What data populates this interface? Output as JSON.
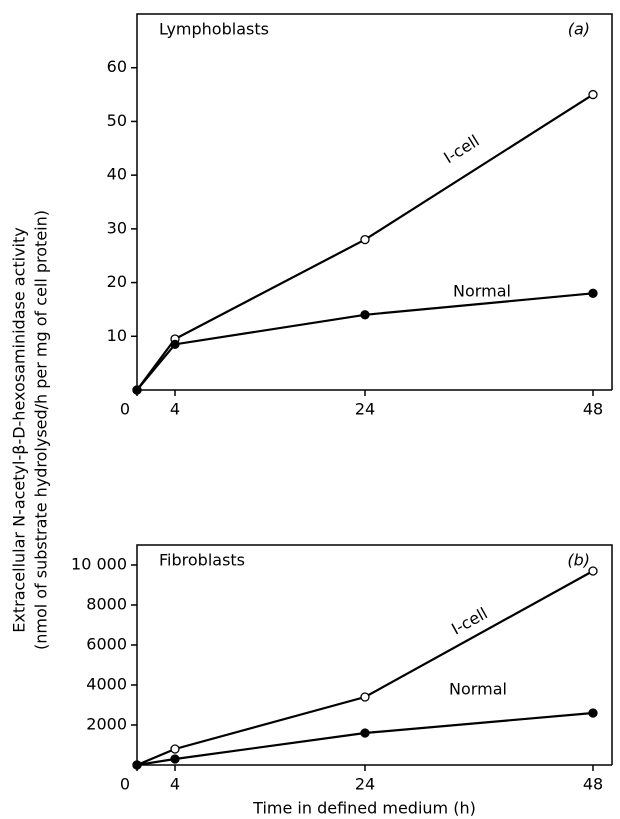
{
  "chart_data": [
    {
      "type": "line",
      "title": "Lymphoblasts",
      "panel_label": "(a)",
      "ylabel": [
        "Extracellular N-acetyl-β-D-hexosaminidase activity",
        "(nmol of substrate hydrolysed/h per mg of cell protein)"
      ],
      "x": [
        0,
        4,
        24,
        48
      ],
      "xlim": [
        0,
        50
      ],
      "xticks": [
        0,
        4,
        24,
        48
      ],
      "ylim": [
        0,
        70
      ],
      "yticks": [
        10,
        20,
        30,
        40,
        50,
        60
      ],
      "series": [
        {
          "name": "I-cell",
          "color": "#000000",
          "marker": "open",
          "values": [
            0,
            9.5,
            28,
            55
          ]
        },
        {
          "name": "Normal",
          "color": "#000000",
          "marker": "filled",
          "values": [
            0,
            8.5,
            14,
            18
          ]
        }
      ]
    },
    {
      "type": "line",
      "title": "Fibroblasts",
      "panel_label": "(b)",
      "xlabel": "Time in defined medium (h)",
      "x": [
        0,
        4,
        24,
        48
      ],
      "xlim": [
        0,
        50
      ],
      "xticks": [
        0,
        4,
        24,
        48
      ],
      "ylim": [
        0,
        11000
      ],
      "yticks": [
        2000,
        4000,
        6000,
        8000,
        {
          "value": 10000,
          "label": "10 000"
        }
      ],
      "series": [
        {
          "name": "I-cell",
          "color": "#000000",
          "marker": "open",
          "values": [
            0,
            800,
            3400,
            9700
          ]
        },
        {
          "name": "Normal",
          "color": "#000000",
          "marker": "filled",
          "values": [
            0,
            300,
            1600,
            2600
          ]
        }
      ]
    }
  ]
}
